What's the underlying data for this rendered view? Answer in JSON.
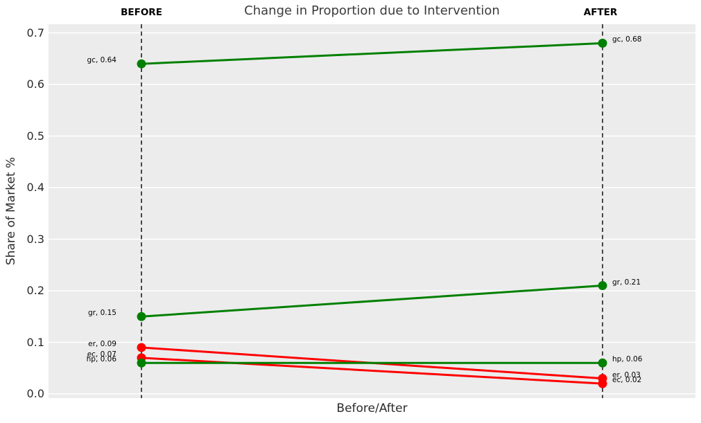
{
  "chart": {
    "title": "Change in Proportion due to Intervention",
    "column_labels": {
      "before": "BEFORE",
      "after": "AFTER"
    },
    "ylabel": "Share of Market %",
    "xlabel": "Before/After"
  },
  "chart_data": {
    "type": "line",
    "subtype": "slopegraph",
    "title": "Change in Proportion due to Intervention",
    "xlabel": "Before/After",
    "ylabel": "Share of Market %",
    "categories": [
      "Before",
      "After"
    ],
    "series": [
      {
        "name": "gc",
        "values": [
          0.64,
          0.68
        ],
        "color": "#008000",
        "point_labels": [
          "gc, 0.64",
          "gc, 0.68"
        ]
      },
      {
        "name": "gr",
        "values": [
          0.15,
          0.21
        ],
        "color": "#008000",
        "point_labels": [
          "gr, 0.15",
          "gr, 0.21"
        ]
      },
      {
        "name": "er",
        "values": [
          0.09,
          0.03
        ],
        "color": "#ff0000",
        "point_labels": [
          "er, 0.09",
          "er, 0.03"
        ]
      },
      {
        "name": "ec",
        "values": [
          0.07,
          0.02
        ],
        "color": "#ff0000",
        "point_labels": [
          "ec, 0.07",
          "ec, 0.02"
        ]
      },
      {
        "name": "hp",
        "values": [
          0.06,
          0.06
        ],
        "color": "#008000",
        "point_labels": [
          "hp, 0.06",
          "hp, 0.06"
        ]
      }
    ],
    "yticks": [
      "0.0",
      "0.1",
      "0.2",
      "0.3",
      "0.4",
      "0.5",
      "0.6",
      "0.7"
    ],
    "ylim": [
      0.0,
      0.7
    ],
    "grid": true,
    "legend": "none",
    "reference_lines": [
      "Before",
      "After"
    ],
    "styles": {
      "plot_background": "#ececec",
      "grid_color": "#ffffff",
      "increase_color": "#008000",
      "decrease_color": "#ff0000",
      "reference_line_color": "#000000",
      "title_color": "#3b3b3b",
      "tick_color": "#2b2b2b"
    }
  }
}
